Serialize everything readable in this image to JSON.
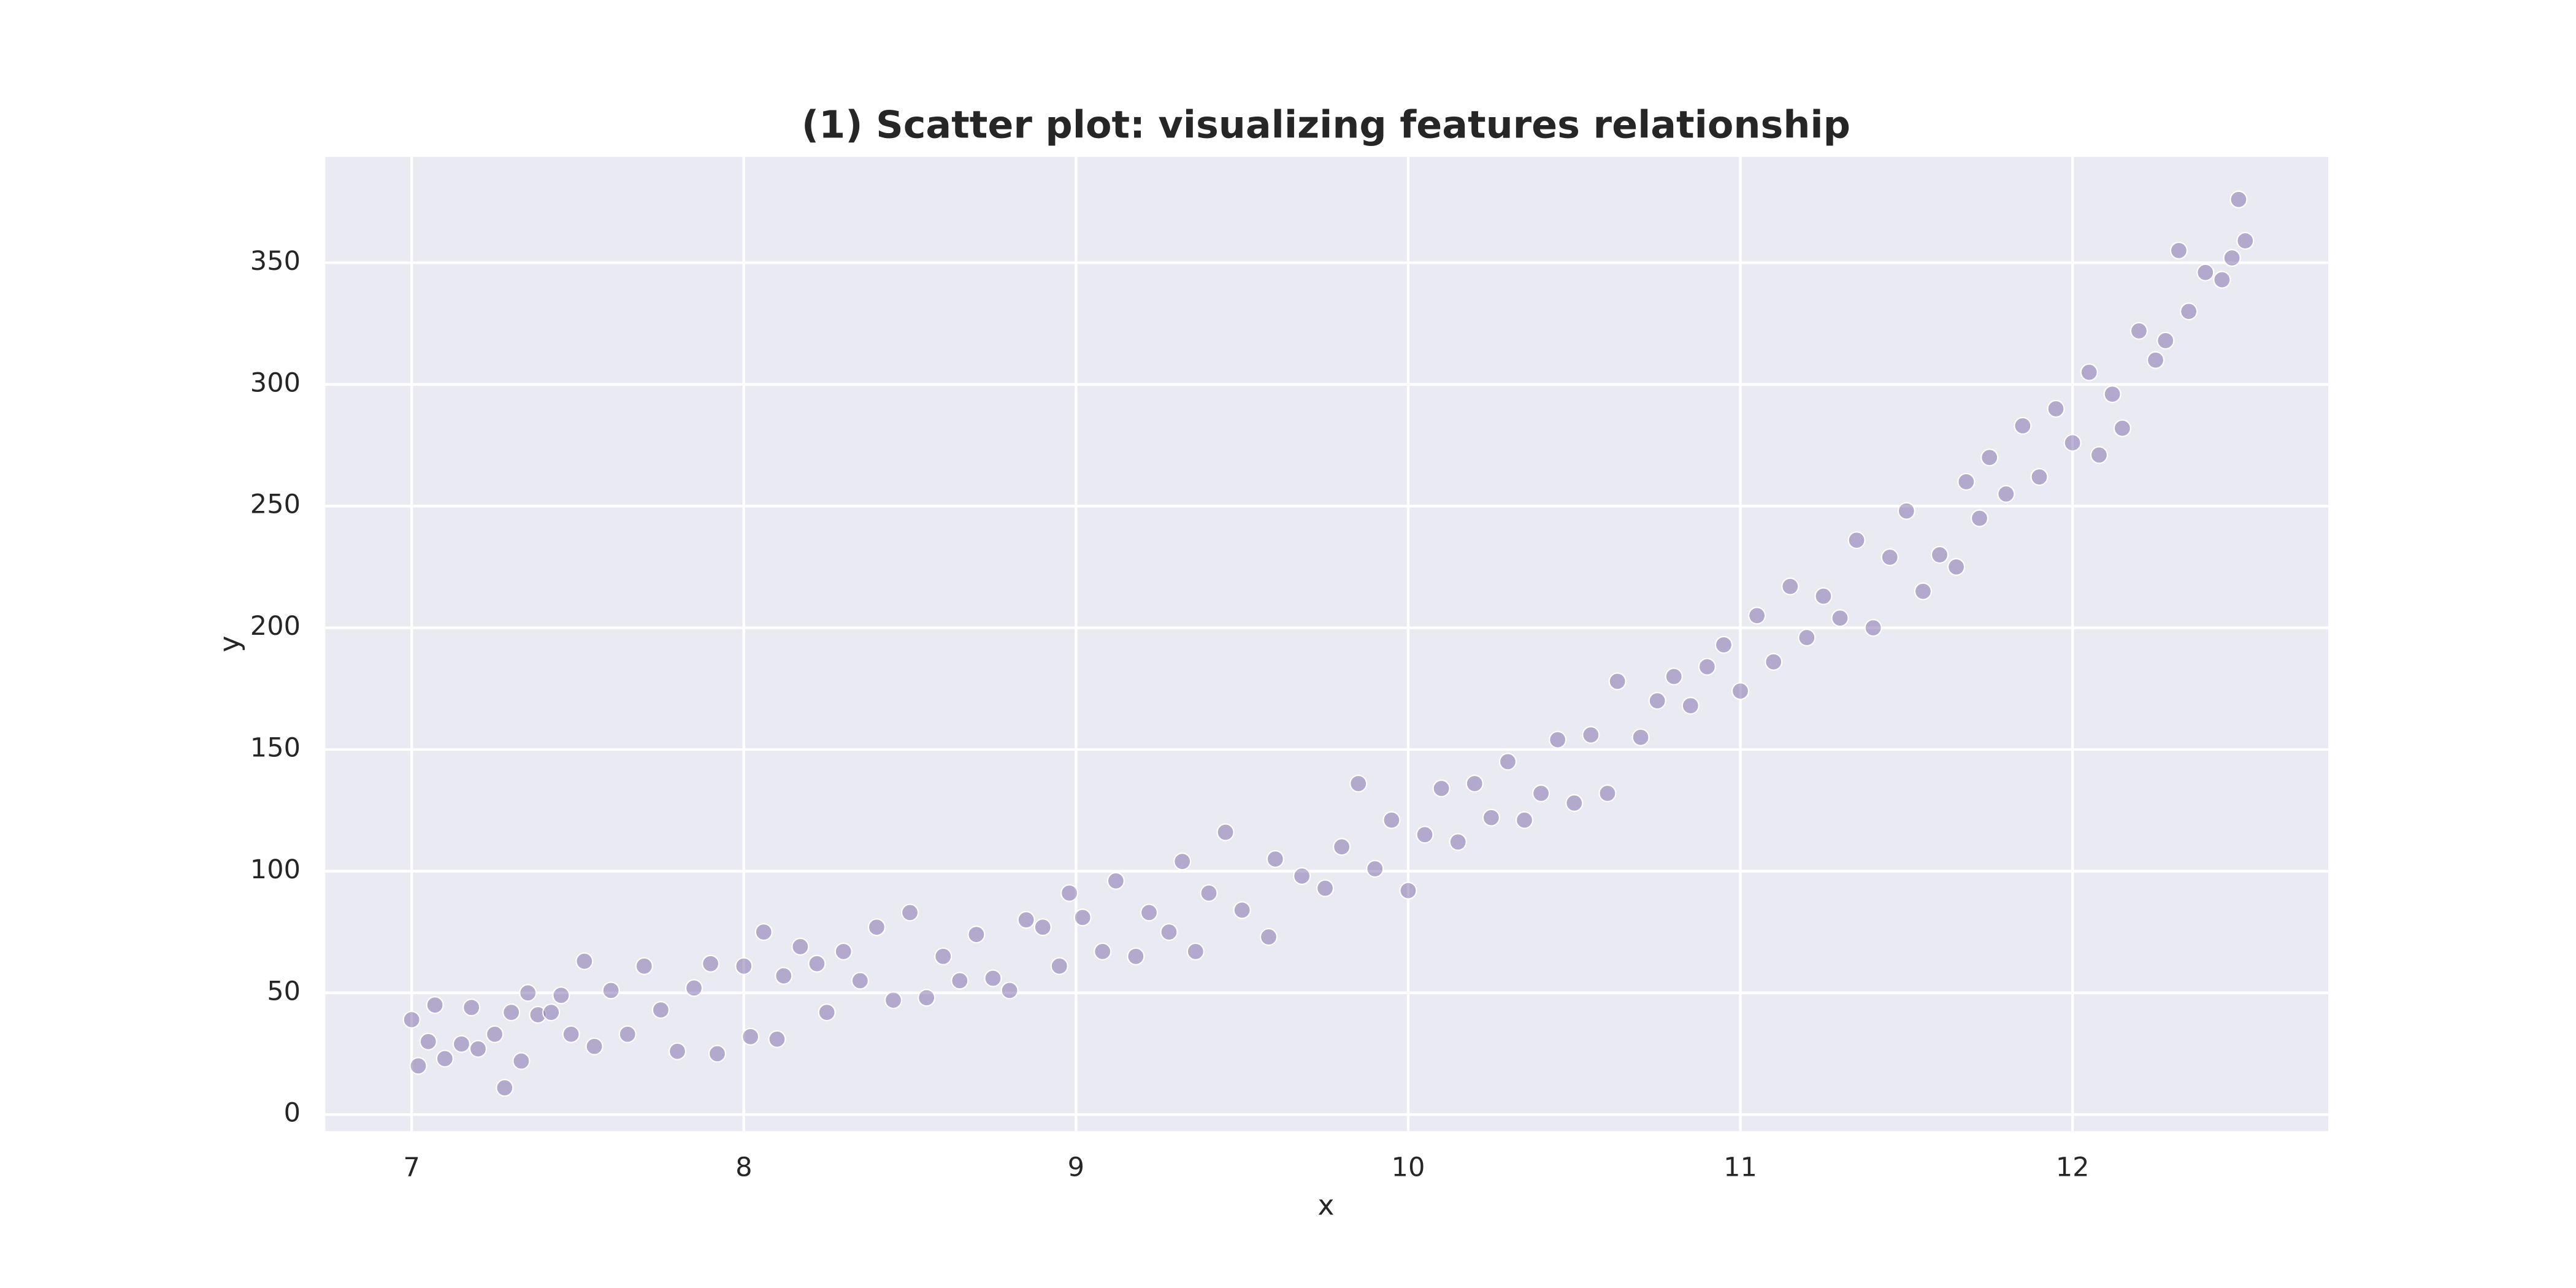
{
  "chart_data": {
    "type": "scatter",
    "title": "(1) Scatter plot: visualizing features relationship",
    "x_label": "x",
    "y_label": "y",
    "color": "#7b68a8",
    "grid": true,
    "xlim": [
      6.74,
      12.77
    ],
    "ylim": [
      -6.8,
      393.5
    ],
    "xticks": [
      7,
      8,
      9,
      10,
      11,
      12
    ],
    "yticks": [
      0,
      50,
      100,
      150,
      200,
      250,
      300,
      350
    ],
    "x": [
      7.0,
      7.02,
      7.05,
      7.07,
      7.1,
      7.15,
      7.18,
      7.2,
      7.25,
      7.28,
      7.3,
      7.33,
      7.35,
      7.38,
      7.42,
      7.45,
      7.48,
      7.52,
      7.55,
      7.6,
      7.65,
      7.7,
      7.75,
      7.8,
      7.85,
      7.9,
      7.92,
      8.0,
      8.02,
      8.06,
      8.1,
      8.12,
      8.17,
      8.22,
      8.25,
      8.3,
      8.35,
      8.4,
      8.45,
      8.5,
      8.55,
      8.6,
      8.65,
      8.7,
      8.75,
      8.8,
      8.85,
      8.9,
      8.95,
      8.98,
      9.02,
      9.08,
      9.12,
      9.18,
      9.22,
      9.28,
      9.32,
      9.36,
      9.4,
      9.45,
      9.5,
      9.58,
      9.6,
      9.68,
      9.75,
      9.8,
      9.85,
      9.9,
      9.95,
      10.0,
      10.05,
      10.1,
      10.15,
      10.2,
      10.25,
      10.3,
      10.35,
      10.4,
      10.45,
      10.5,
      10.55,
      10.6,
      10.63,
      10.7,
      10.75,
      10.8,
      10.85,
      10.9,
      10.95,
      11.0,
      11.05,
      11.1,
      11.15,
      11.2,
      11.25,
      11.3,
      11.35,
      11.4,
      11.45,
      11.5,
      11.55,
      11.6,
      11.65,
      11.68,
      11.72,
      11.75,
      11.8,
      11.85,
      11.9,
      11.95,
      12.0,
      12.05,
      12.08,
      12.12,
      12.15,
      12.2,
      12.25,
      12.28,
      12.32,
      12.35,
      12.4,
      12.45,
      12.48,
      12.5,
      12.52
    ],
    "y": [
      39,
      20,
      30,
      45,
      23,
      29,
      44,
      27,
      33,
      11,
      42,
      22,
      50,
      41,
      42,
      49,
      33,
      63,
      28,
      51,
      33,
      61,
      43,
      26,
      52,
      62,
      25,
      61,
      32,
      75,
      31,
      57,
      69,
      62,
      42,
      67,
      55,
      77,
      47,
      83,
      48,
      65,
      55,
      74,
      56,
      51,
      80,
      77,
      61,
      91,
      81,
      67,
      96,
      65,
      83,
      75,
      104,
      67,
      91,
      116,
      84,
      73,
      105,
      98,
      93,
      110,
      136,
      101,
      121,
      92,
      115,
      134,
      112,
      136,
      122,
      145,
      121,
      132,
      154,
      128,
      156,
      132,
      178,
      155,
      170,
      180,
      168,
      184,
      193,
      174,
      205,
      186,
      217,
      196,
      213,
      204,
      236,
      200,
      229,
      248,
      215,
      230,
      225,
      260,
      245,
      270,
      255,
      283,
      262,
      290,
      276,
      305,
      271,
      296,
      282,
      322,
      310,
      318,
      355,
      330,
      346,
      343,
      352,
      376,
      359
    ]
  }
}
